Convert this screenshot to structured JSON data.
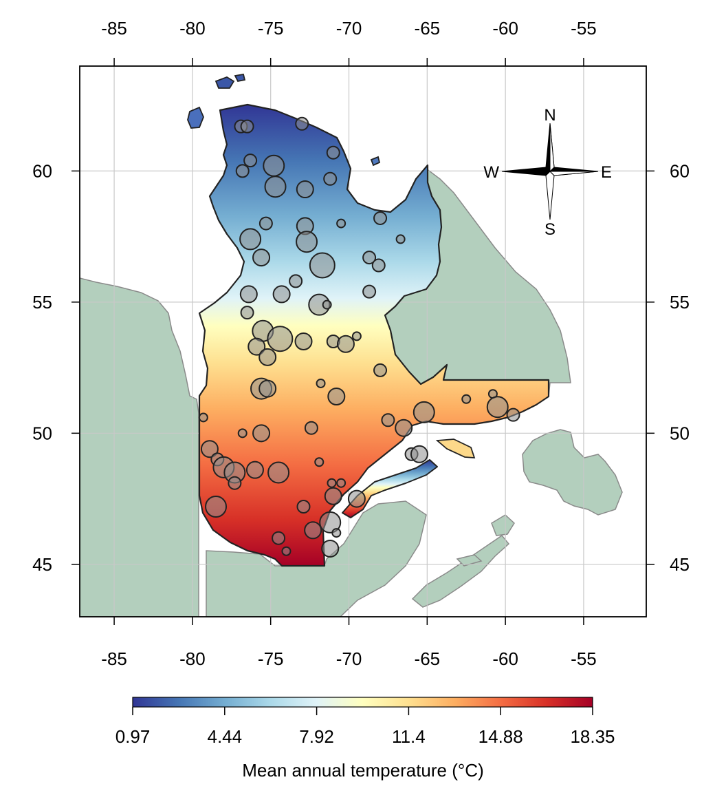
{
  "map": {
    "x_ticks": [
      {
        "value": -85,
        "label": "-85"
      },
      {
        "value": -80,
        "label": "-80"
      },
      {
        "value": -75,
        "label": "-75"
      },
      {
        "value": -70,
        "label": "-70"
      },
      {
        "value": -65,
        "label": "-65"
      },
      {
        "value": -60,
        "label": "-60"
      },
      {
        "value": -55,
        "label": "-55"
      }
    ],
    "y_ticks": [
      {
        "value": 45,
        "label": "45"
      },
      {
        "value": 50,
        "label": "50"
      },
      {
        "value": 55,
        "label": "55"
      },
      {
        "value": 60,
        "label": "60"
      }
    ],
    "xlim": [
      -87.2,
      -51.0
    ],
    "ylim": [
      43.0,
      64.0
    ],
    "grid": true,
    "compass": {
      "n": "N",
      "s": "S",
      "e": "E",
      "w": "W",
      "placement": "top-right"
    },
    "stations": [
      {
        "lon": -76.9,
        "lat": 61.7,
        "size": 2
      },
      {
        "lon": -76.5,
        "lat": 61.7,
        "size": 2
      },
      {
        "lon": -73.0,
        "lat": 61.8,
        "size": 2
      },
      {
        "lon": -74.8,
        "lat": 60.2,
        "size": 4
      },
      {
        "lon": -71.0,
        "lat": 60.7,
        "size": 2
      },
      {
        "lon": -76.3,
        "lat": 60.4,
        "size": 2
      },
      {
        "lon": -76.8,
        "lat": 60.0,
        "size": 2
      },
      {
        "lon": -74.7,
        "lat": 59.4,
        "size": 4
      },
      {
        "lon": -72.8,
        "lat": 59.3,
        "size": 3
      },
      {
        "lon": -71.2,
        "lat": 59.7,
        "size": 2
      },
      {
        "lon": -68.0,
        "lat": 58.2,
        "size": 2
      },
      {
        "lon": -75.3,
        "lat": 58.0,
        "size": 2
      },
      {
        "lon": -72.8,
        "lat": 57.9,
        "size": 3
      },
      {
        "lon": -70.5,
        "lat": 58.0,
        "size": 1
      },
      {
        "lon": -76.3,
        "lat": 57.4,
        "size": 4
      },
      {
        "lon": -72.7,
        "lat": 57.3,
        "size": 4
      },
      {
        "lon": -66.7,
        "lat": 57.4,
        "size": 1
      },
      {
        "lon": -75.6,
        "lat": 56.7,
        "size": 3
      },
      {
        "lon": -71.7,
        "lat": 56.4,
        "size": 5
      },
      {
        "lon": -68.7,
        "lat": 56.7,
        "size": 2
      },
      {
        "lon": -68.1,
        "lat": 56.4,
        "size": 2
      },
      {
        "lon": -76.4,
        "lat": 55.3,
        "size": 3
      },
      {
        "lon": -74.3,
        "lat": 55.3,
        "size": 3
      },
      {
        "lon": -73.4,
        "lat": 55.8,
        "size": 2
      },
      {
        "lon": -71.9,
        "lat": 54.9,
        "size": 4
      },
      {
        "lon": -71.4,
        "lat": 54.9,
        "size": 1
      },
      {
        "lon": -68.7,
        "lat": 55.4,
        "size": 2
      },
      {
        "lon": -76.5,
        "lat": 54.6,
        "size": 2
      },
      {
        "lon": -75.5,
        "lat": 53.9,
        "size": 4
      },
      {
        "lon": -74.4,
        "lat": 53.6,
        "size": 5
      },
      {
        "lon": -72.9,
        "lat": 53.5,
        "size": 3
      },
      {
        "lon": -71.0,
        "lat": 53.5,
        "size": 2
      },
      {
        "lon": -70.2,
        "lat": 53.4,
        "size": 3
      },
      {
        "lon": -69.5,
        "lat": 53.7,
        "size": 1
      },
      {
        "lon": -75.9,
        "lat": 53.3,
        "size": 3
      },
      {
        "lon": -75.2,
        "lat": 52.9,
        "size": 3
      },
      {
        "lon": -68.0,
        "lat": 52.4,
        "size": 2
      },
      {
        "lon": -75.6,
        "lat": 51.7,
        "size": 4
      },
      {
        "lon": -75.2,
        "lat": 51.7,
        "size": 3
      },
      {
        "lon": -70.8,
        "lat": 51.4,
        "size": 3
      },
      {
        "lon": -71.8,
        "lat": 51.9,
        "size": 1
      },
      {
        "lon": -67.5,
        "lat": 50.5,
        "size": 2
      },
      {
        "lon": -66.5,
        "lat": 50.2,
        "size": 3
      },
      {
        "lon": -65.2,
        "lat": 50.8,
        "size": 4
      },
      {
        "lon": -62.5,
        "lat": 51.3,
        "size": 1
      },
      {
        "lon": -60.8,
        "lat": 51.5,
        "size": 1
      },
      {
        "lon": -60.5,
        "lat": 51.0,
        "size": 4
      },
      {
        "lon": -59.5,
        "lat": 50.7,
        "size": 2
      },
      {
        "lon": -75.6,
        "lat": 50.0,
        "size": 3
      },
      {
        "lon": -72.4,
        "lat": 50.2,
        "size": 2
      },
      {
        "lon": -79.3,
        "lat": 50.6,
        "size": 1
      },
      {
        "lon": -76.8,
        "lat": 50.0,
        "size": 1
      },
      {
        "lon": -78.9,
        "lat": 49.4,
        "size": 3
      },
      {
        "lon": -78.4,
        "lat": 49.0,
        "size": 2
      },
      {
        "lon": -78.0,
        "lat": 48.7,
        "size": 4
      },
      {
        "lon": -77.3,
        "lat": 48.5,
        "size": 4
      },
      {
        "lon": -77.3,
        "lat": 48.1,
        "size": 2
      },
      {
        "lon": -76.0,
        "lat": 48.6,
        "size": 3
      },
      {
        "lon": -74.5,
        "lat": 48.5,
        "size": 4
      },
      {
        "lon": -71.9,
        "lat": 48.9,
        "size": 1
      },
      {
        "lon": -71.1,
        "lat": 48.1,
        "size": 1
      },
      {
        "lon": -71.0,
        "lat": 47.6,
        "size": 3
      },
      {
        "lon": -70.5,
        "lat": 48.1,
        "size": 1
      },
      {
        "lon": -66.0,
        "lat": 49.2,
        "size": 2
      },
      {
        "lon": -65.5,
        "lat": 49.2,
        "size": 3
      },
      {
        "lon": -78.5,
        "lat": 47.2,
        "size": 4
      },
      {
        "lon": -72.9,
        "lat": 47.2,
        "size": 2
      },
      {
        "lon": -69.5,
        "lat": 47.5,
        "size": 3
      },
      {
        "lon": -71.2,
        "lat": 46.6,
        "size": 4
      },
      {
        "lon": -72.3,
        "lat": 46.3,
        "size": 3
      },
      {
        "lon": -70.8,
        "lat": 46.2,
        "size": 1
      },
      {
        "lon": -74.5,
        "lat": 46.0,
        "size": 2
      },
      {
        "lon": -71.2,
        "lat": 45.6,
        "size": 3
      },
      {
        "lon": -74.0,
        "lat": 45.5,
        "size": 1
      }
    ]
  },
  "legend": {
    "ticks": [
      "0.97",
      "4.44",
      "7.92",
      "11.4",
      "14.88",
      "18.35"
    ],
    "min": 0.97,
    "max": 18.35,
    "title": "Mean annual temperature (°C)",
    "colors": [
      "#313695",
      "#4575b4",
      "#74add1",
      "#abd9e9",
      "#e0f3f8",
      "#ffffbf",
      "#fee090",
      "#fdae61",
      "#f46d43",
      "#d73027",
      "#a50026"
    ]
  },
  "colors": {
    "land": "#b3cfbd",
    "land_border": "#8a8a8a",
    "grid": "#c8c8c8",
    "outline": "#222222",
    "station_fill": "#8f8f8f"
  }
}
